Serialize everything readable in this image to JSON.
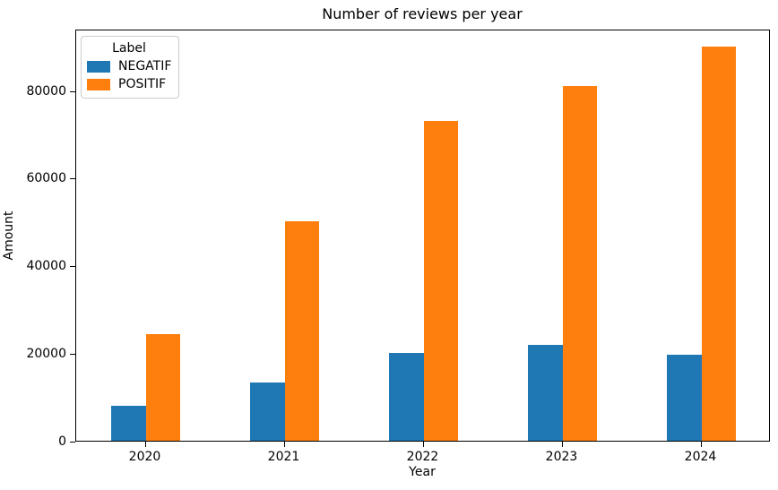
{
  "chart_data": {
    "type": "bar",
    "title": "Number of reviews per year",
    "xlabel": "Year",
    "ylabel": "Amount",
    "categories": [
      "2020",
      "2021",
      "2022",
      "2023",
      "2024"
    ],
    "series": [
      {
        "name": "NEGATIF",
        "color": "#1f77b4",
        "values": [
          8000,
          13200,
          20000,
          21900,
          19700
        ]
      },
      {
        "name": "POSITIF",
        "color": "#ff7f0e",
        "values": [
          24400,
          50000,
          73000,
          81000,
          89900
        ]
      }
    ],
    "legend": {
      "title": "Label",
      "position": "upper left"
    },
    "ylim": [
      0,
      94000
    ],
    "yticks": [
      0,
      20000,
      40000,
      60000,
      80000
    ],
    "grid": false,
    "background": "#ffffff",
    "text_color": "#000000"
  }
}
